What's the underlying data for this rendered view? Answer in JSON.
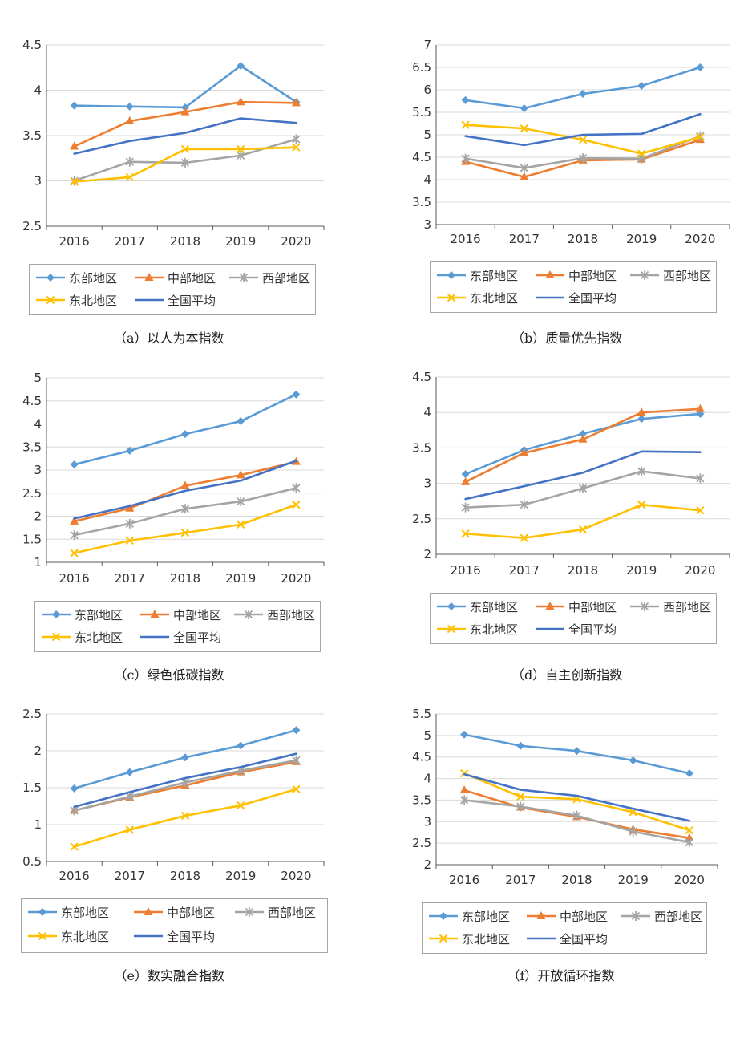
{
  "colors": {
    "east": "#5b9bd5",
    "central": "#ed7d31",
    "west": "#a5a5a5",
    "northeast": "#ffc000",
    "national": "#4472c4",
    "grid": "#d9d9d9",
    "axis": "#595959"
  },
  "legend_labels": [
    "东部地区",
    "中部地区",
    "西部地区",
    "东北地区",
    "全国平均"
  ],
  "chart_data": [
    {
      "type": "line",
      "caption": "（a）以人为本指数",
      "x": [
        "2016",
        "2017",
        "2018",
        "2019",
        "2020"
      ],
      "ylim": [
        2.5,
        4.5
      ],
      "yticks": [
        "2.5",
        "3",
        "3.5",
        "4",
        "4.5"
      ],
      "series": [
        {
          "name": "东部地区",
          "marker": "diamond",
          "values": [
            3.83,
            3.82,
            3.81,
            4.27,
            3.87
          ]
        },
        {
          "name": "中部地区",
          "marker": "triangle",
          "values": [
            3.38,
            3.66,
            3.76,
            3.87,
            3.86
          ]
        },
        {
          "name": "西部地区",
          "marker": "star",
          "values": [
            3.0,
            3.21,
            3.2,
            3.28,
            3.46
          ]
        },
        {
          "name": "东北地区",
          "marker": "x",
          "values": [
            2.99,
            3.04,
            3.35,
            3.35,
            3.37
          ]
        },
        {
          "name": "全国平均",
          "marker": "none",
          "values": [
            3.3,
            3.44,
            3.53,
            3.69,
            3.64
          ]
        }
      ]
    },
    {
      "type": "line",
      "caption": "（b）质量优先指数",
      "x": [
        "2016",
        "2017",
        "2018",
        "2019",
        "2020"
      ],
      "ylim": [
        3,
        7
      ],
      "yticks": [
        "3",
        "3.5",
        "4",
        "4.5",
        "5",
        "5.5",
        "6",
        "6.5",
        "7"
      ],
      "series": [
        {
          "name": "东部地区",
          "marker": "diamond",
          "values": [
            5.77,
            5.59,
            5.91,
            6.09,
            6.5
          ]
        },
        {
          "name": "中部地区",
          "marker": "triangle",
          "values": [
            4.4,
            4.06,
            4.43,
            4.45,
            4.89
          ]
        },
        {
          "name": "西部地区",
          "marker": "star",
          "values": [
            4.47,
            4.26,
            4.48,
            4.47,
            4.97
          ]
        },
        {
          "name": "东北地区",
          "marker": "x",
          "values": [
            5.22,
            5.14,
            4.89,
            4.58,
            4.95
          ]
        },
        {
          "name": "全国平均",
          "marker": "none",
          "values": [
            4.97,
            4.77,
            5.0,
            5.02,
            5.46
          ]
        }
      ]
    },
    {
      "type": "line",
      "caption": "（c）绿色低碳指数",
      "x": [
        "2016",
        "2017",
        "2018",
        "2019",
        "2020"
      ],
      "ylim": [
        1,
        5
      ],
      "yticks": [
        "1",
        "1.5",
        "2",
        "2.5",
        "3",
        "3.5",
        "4",
        "4.5",
        "5"
      ],
      "series": [
        {
          "name": "东部地区",
          "marker": "diamond",
          "values": [
            3.12,
            3.42,
            3.78,
            4.06,
            4.64
          ]
        },
        {
          "name": "中部地区",
          "marker": "triangle",
          "values": [
            1.89,
            2.17,
            2.66,
            2.89,
            3.18
          ]
        },
        {
          "name": "西部地区",
          "marker": "star",
          "values": [
            1.59,
            1.84,
            2.16,
            2.32,
            2.61
          ]
        },
        {
          "name": "东北地区",
          "marker": "x",
          "values": [
            1.2,
            1.47,
            1.64,
            1.82,
            2.25
          ]
        },
        {
          "name": "全国平均",
          "marker": "none",
          "values": [
            1.95,
            2.22,
            2.55,
            2.77,
            3.2
          ]
        }
      ]
    },
    {
      "type": "line",
      "caption": "（d）自主创新指数",
      "x": [
        "2016",
        "2017",
        "2018",
        "2019",
        "2020"
      ],
      "ylim": [
        2,
        4.5
      ],
      "yticks": [
        "2",
        "2.5",
        "3",
        "3.5",
        "4",
        "4.5"
      ],
      "series": [
        {
          "name": "东部地区",
          "marker": "diamond",
          "values": [
            3.13,
            3.47,
            3.7,
            3.91,
            3.98
          ]
        },
        {
          "name": "中部地区",
          "marker": "triangle",
          "values": [
            3.02,
            3.43,
            3.62,
            4.0,
            4.05
          ]
        },
        {
          "name": "西部地区",
          "marker": "star",
          "values": [
            2.66,
            2.7,
            2.93,
            3.17,
            3.07
          ]
        },
        {
          "name": "东北地区",
          "marker": "x",
          "values": [
            2.29,
            2.23,
            2.35,
            2.7,
            2.62
          ]
        },
        {
          "name": "全国平均",
          "marker": "none",
          "values": [
            2.78,
            2.96,
            3.15,
            3.45,
            3.44
          ]
        }
      ]
    },
    {
      "type": "line",
      "caption": "（e）数实融合指数",
      "x": [
        "2016",
        "2017",
        "2018",
        "2019",
        "2020"
      ],
      "ylim": [
        0.5,
        2.5
      ],
      "yticks": [
        "0.5",
        "1",
        "1.5",
        "2",
        "2.5"
      ],
      "series": [
        {
          "name": "东部地区",
          "marker": "diamond",
          "values": [
            1.49,
            1.71,
            1.91,
            2.07,
            2.28
          ]
        },
        {
          "name": "中部地区",
          "marker": "triangle",
          "values": [
            1.19,
            1.37,
            1.53,
            1.71,
            1.85
          ]
        },
        {
          "name": "西部地区",
          "marker": "star",
          "values": [
            1.19,
            1.38,
            1.57,
            1.73,
            1.87
          ]
        },
        {
          "name": "东北地区",
          "marker": "x",
          "values": [
            0.7,
            0.93,
            1.12,
            1.26,
            1.48
          ]
        },
        {
          "name": "全国平均",
          "marker": "none",
          "values": [
            1.24,
            1.44,
            1.63,
            1.78,
            1.96
          ]
        }
      ]
    },
    {
      "type": "line",
      "caption": "（f）开放循环指数",
      "x": [
        "2016",
        "2017",
        "2018",
        "2019",
        "2020"
      ],
      "ylim": [
        2,
        5.5
      ],
      "yticks": [
        "2",
        "2.5",
        "3",
        "3.5",
        "4",
        "4.5",
        "5",
        "5.5"
      ],
      "series": [
        {
          "name": "东部地区",
          "marker": "diamond",
          "values": [
            5.02,
            4.76,
            4.64,
            4.42,
            4.12
          ]
        },
        {
          "name": "中部地区",
          "marker": "triangle",
          "values": [
            3.73,
            3.33,
            3.11,
            2.82,
            2.62
          ]
        },
        {
          "name": "西部地区",
          "marker": "star",
          "values": [
            3.5,
            3.35,
            3.14,
            2.77,
            2.52
          ]
        },
        {
          "name": "东北地区",
          "marker": "x",
          "values": [
            4.12,
            3.58,
            3.52,
            3.22,
            2.8
          ]
        },
        {
          "name": "全国平均",
          "marker": "none",
          "values": [
            4.1,
            3.74,
            3.6,
            3.3,
            3.02
          ]
        }
      ]
    }
  ]
}
